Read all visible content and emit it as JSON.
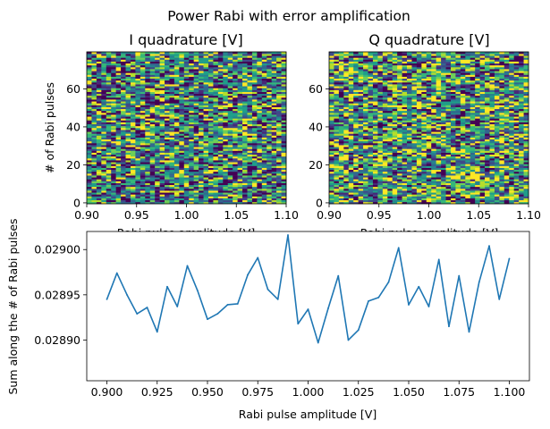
{
  "figure": {
    "suptitle": "Power Rabi with error amplification"
  },
  "chart_data": [
    {
      "type": "heatmap",
      "title": "I quadrature [V]",
      "xlabel": "Rabi pulse amplitude [V]",
      "ylabel": "# of Rabi pulses",
      "xlim": [
        0.9,
        1.1
      ],
      "ylim": [
        0,
        79
      ],
      "x_ticks": [
        "0.90",
        "0.95",
        "1.00",
        "1.05",
        "1.10"
      ],
      "y_ticks": [
        "0",
        "20",
        "40",
        "60"
      ],
      "n_cols": 41,
      "n_rows": 80,
      "colormap": "viridis",
      "cell_values": "pseudo-random noise (not individually readable)",
      "seed": 7
    },
    {
      "type": "heatmap",
      "title": "Q quadrature [V]",
      "xlabel": "Rabi pulse amplitude [V]",
      "ylabel": "",
      "xlim": [
        0.9,
        1.1
      ],
      "ylim": [
        0,
        79
      ],
      "x_ticks": [
        "0.90",
        "0.95",
        "1.00",
        "1.05",
        "1.10"
      ],
      "y_ticks": [
        "0",
        "20",
        "40",
        "60"
      ],
      "n_cols": 41,
      "n_rows": 80,
      "colormap": "viridis",
      "cell_values": "pseudo-random noise (not individually readable)",
      "seed": 23
    },
    {
      "type": "line",
      "title": "",
      "xlabel": "Rabi pulse amplitude [V]",
      "ylabel": "Sum along the # of Rabi pulses",
      "color": "#1f77b4",
      "xlim": [
        0.89,
        1.11
      ],
      "ylim": [
        0.028855,
        0.02902
      ],
      "x_ticks": [
        "0.900",
        "0.925",
        "0.950",
        "0.975",
        "1.000",
        "1.025",
        "1.050",
        "1.075",
        "1.100"
      ],
      "y_ticks": [
        "0.02890",
        "0.02895",
        "0.02900"
      ],
      "x": [
        0.9,
        0.905,
        0.91,
        0.915,
        0.92,
        0.925,
        0.93,
        0.935,
        0.94,
        0.945,
        0.95,
        0.955,
        0.96,
        0.965,
        0.97,
        0.975,
        0.98,
        0.985,
        0.99,
        0.995,
        1.0,
        1.005,
        1.01,
        1.015,
        1.02,
        1.025,
        1.03,
        1.035,
        1.04,
        1.045,
        1.05,
        1.055,
        1.06,
        1.065,
        1.07,
        1.075,
        1.08,
        1.085,
        1.09,
        1.095,
        1.1
      ],
      "y": [
        0.028945,
        0.028974,
        0.02895,
        0.028929,
        0.028936,
        0.028909,
        0.028959,
        0.028937,
        0.028982,
        0.028955,
        0.028923,
        0.028929,
        0.028939,
        0.02894,
        0.028972,
        0.028991,
        0.028956,
        0.028945,
        0.029016,
        0.028918,
        0.028934,
        0.028897,
        0.028935,
        0.028971,
        0.0289,
        0.028911,
        0.028943,
        0.028947,
        0.028964,
        0.029002,
        0.028939,
        0.028959,
        0.028937,
        0.028989,
        0.028915,
        0.028971,
        0.028909,
        0.028964,
        0.029004,
        0.028945,
        0.02899
      ]
    }
  ]
}
